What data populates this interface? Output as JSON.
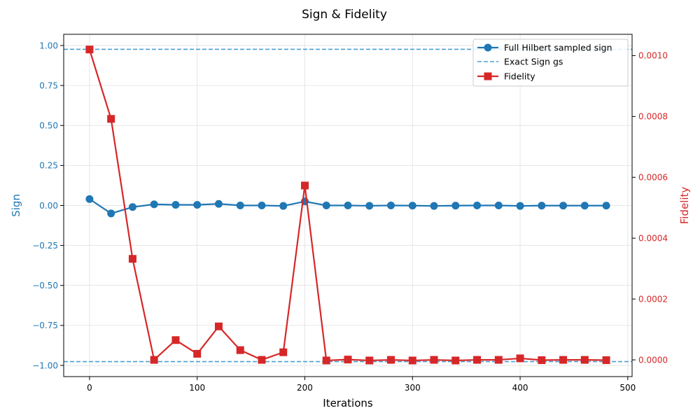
{
  "chart_data": {
    "type": "line",
    "title": "Sign & Fidelity",
    "xlabel": "Iterations",
    "ylabel_left": "Sign",
    "ylabel_right": "Fidelity",
    "xlim": [
      -24,
      504
    ],
    "ylim_left": [
      -1.07,
      1.07
    ],
    "ylim_right": [
      -5.5e-05,
      0.00107
    ],
    "x_ticks": [
      0,
      100,
      200,
      300,
      400,
      500
    ],
    "y_left_ticks": [
      1.0,
      0.75,
      0.5,
      0.25,
      0.0,
      -0.25,
      -0.5,
      -0.75,
      -1.0
    ],
    "y_left_tick_labels": [
      "1.00",
      "0.75",
      "0.50",
      "0.25",
      "0.00",
      "−0.25",
      "−0.50",
      "−0.75",
      "−1.00"
    ],
    "y_right_ticks": [
      0.0,
      0.0002,
      0.0004,
      0.0006,
      0.0008,
      0.001
    ],
    "y_right_tick_labels": [
      "0.0000",
      "0.0002",
      "0.0004",
      "0.0006",
      "0.0008",
      "0.0010"
    ],
    "grid": true,
    "legend_position": "top-right",
    "colors": {
      "sign": "#1f77b4",
      "exact": "#4a9fd4",
      "fidelity": "#d62728",
      "grid": "#e6e6e6"
    },
    "series": [
      {
        "name": "Full Hilbert sampled sign",
        "axis": "left",
        "marker": "circle",
        "x": [
          0,
          20,
          40,
          60,
          80,
          100,
          120,
          140,
          160,
          180,
          200,
          220,
          240,
          260,
          280,
          300,
          320,
          340,
          360,
          380,
          400,
          420,
          440,
          460,
          480
        ],
        "values": [
          0.04,
          -0.05,
          -0.01,
          0.007,
          0.004,
          0.004,
          0.01,
          0.0,
          0.0,
          -0.003,
          0.025,
          0.0,
          0.0,
          -0.002,
          0.0,
          -0.001,
          -0.003,
          -0.001,
          0.0,
          0.0,
          -0.003,
          -0.001,
          -0.001,
          -0.001,
          -0.001
        ]
      },
      {
        "name": "Exact Sign gs",
        "axis": "left",
        "style": "dashed",
        "levels": [
          0.976,
          -0.976
        ]
      },
      {
        "name": "Fidelity",
        "axis": "right",
        "marker": "square",
        "x": [
          0,
          20,
          40,
          60,
          80,
          100,
          120,
          140,
          160,
          180,
          200,
          220,
          240,
          260,
          280,
          300,
          320,
          340,
          360,
          380,
          400,
          420,
          440,
          460,
          480
        ],
        "values": [
          0.00102,
          0.000792,
          0.000332,
          0.0,
          6.5e-05,
          2e-05,
          0.00011,
          3.2e-05,
          0.0,
          2.5e-05,
          0.000573,
          -2e-06,
          1e-06,
          -2e-06,
          0.0,
          -2e-06,
          0.0,
          -2e-06,
          0.0,
          0.0,
          5e-06,
          -1e-06,
          0.0,
          0.0,
          -1e-06
        ]
      }
    ]
  }
}
